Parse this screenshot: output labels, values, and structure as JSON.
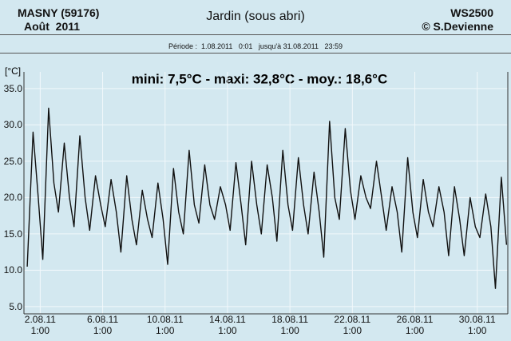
{
  "header": {
    "station": "MASNY (59176)",
    "month": "Août  2011",
    "location": "Jardin (sous abri)",
    "device": "WS2500",
    "author": "© S.Devienne",
    "period": "Période :  1.08.2011   0:01   jusqu'à 31.08.2011   23:59"
  },
  "chart_data": {
    "type": "line",
    "title": "mini: 7,5°C - maxi: 32,8°C - moy.: 18,6°C",
    "y_label": "[°C]",
    "color": "#111111",
    "grid": true,
    "x": [
      "2011-08-01 05:00",
      "2011-08-01 14:00",
      "2011-08-01 22:00",
      "2011-08-02 05:00",
      "2011-08-02 14:00",
      "2011-08-02 22:00",
      "2011-08-03 05:00",
      "2011-08-03 14:00",
      "2011-08-03 22:00",
      "2011-08-04 05:00",
      "2011-08-04 14:00",
      "2011-08-04 22:00",
      "2011-08-05 05:00",
      "2011-08-05 14:00",
      "2011-08-05 22:00",
      "2011-08-06 05:00",
      "2011-08-06 14:00",
      "2011-08-06 22:00",
      "2011-08-07 05:00",
      "2011-08-07 14:00",
      "2011-08-07 22:00",
      "2011-08-08 05:00",
      "2011-08-08 14:00",
      "2011-08-08 22:00",
      "2011-08-09 05:00",
      "2011-08-09 14:00",
      "2011-08-09 22:00",
      "2011-08-10 05:00",
      "2011-08-10 14:00",
      "2011-08-10 22:00",
      "2011-08-11 05:00",
      "2011-08-11 14:00",
      "2011-08-11 22:00",
      "2011-08-12 05:00",
      "2011-08-12 14:00",
      "2011-08-12 22:00",
      "2011-08-13 05:00",
      "2011-08-13 14:00",
      "2011-08-13 22:00",
      "2011-08-14 05:00",
      "2011-08-14 14:00",
      "2011-08-14 22:00",
      "2011-08-15 05:00",
      "2011-08-15 14:00",
      "2011-08-15 22:00",
      "2011-08-16 05:00",
      "2011-08-16 14:00",
      "2011-08-16 22:00",
      "2011-08-17 05:00",
      "2011-08-17 14:00",
      "2011-08-17 22:00",
      "2011-08-18 05:00",
      "2011-08-18 14:00",
      "2011-08-18 22:00",
      "2011-08-19 05:00",
      "2011-08-19 14:00",
      "2011-08-19 22:00",
      "2011-08-20 05:00",
      "2011-08-20 14:00",
      "2011-08-20 22:00",
      "2011-08-21 05:00",
      "2011-08-21 14:00",
      "2011-08-21 22:00",
      "2011-08-22 05:00",
      "2011-08-22 14:00",
      "2011-08-22 22:00",
      "2011-08-23 05:00",
      "2011-08-23 14:00",
      "2011-08-23 22:00",
      "2011-08-24 05:00",
      "2011-08-24 14:00",
      "2011-08-24 22:00",
      "2011-08-25 05:00",
      "2011-08-25 14:00",
      "2011-08-25 22:00",
      "2011-08-26 05:00",
      "2011-08-26 14:00",
      "2011-08-26 22:00",
      "2011-08-27 05:00",
      "2011-08-27 14:00",
      "2011-08-27 22:00",
      "2011-08-28 05:00",
      "2011-08-28 14:00",
      "2011-08-28 22:00",
      "2011-08-29 05:00",
      "2011-08-29 14:00",
      "2011-08-29 22:00",
      "2011-08-30 05:00",
      "2011-08-30 14:00",
      "2011-08-30 22:00",
      "2011-08-31 05:00",
      "2011-08-31 14:00",
      "2011-08-31 22:00"
    ],
    "values": [
      10.5,
      29,
      20,
      11.5,
      32.3,
      22,
      18,
      27.5,
      20,
      16,
      28.5,
      20,
      15.5,
      23,
      19,
      16,
      22.5,
      18,
      12.5,
      23,
      17,
      13.5,
      21,
      17,
      14.5,
      22,
      17,
      10.8,
      24,
      18,
      15,
      26.5,
      19,
      16.5,
      24.5,
      19,
      17,
      21.5,
      19,
      15.5,
      24.8,
      19,
      13.5,
      25,
      19,
      15,
      24.5,
      20,
      14,
      26.5,
      19,
      15.5,
      25.5,
      19,
      15,
      23.5,
      18,
      11.8,
      30.5,
      20,
      17,
      29.5,
      21,
      17,
      23,
      20,
      18.5,
      25,
      20,
      15.5,
      21.5,
      18,
      12.5,
      25.5,
      18,
      14.5,
      22.5,
      18,
      16,
      21.5,
      18,
      12,
      21.5,
      17,
      12,
      20,
      16,
      14.5,
      20.5,
      16,
      7.5,
      22.8,
      13.5
    ],
    "xlim": [
      "2011-08-01 00:01",
      "2011-08-31 23:59"
    ],
    "xticks": [
      {
        "value": "2011-08-02 01:00",
        "label": "2.08.11\n1:00"
      },
      {
        "value": "2011-08-06 01:00",
        "label": "6.08.11\n1:00"
      },
      {
        "value": "2011-08-10 01:00",
        "label": "10.08.11\n1:00"
      },
      {
        "value": "2011-08-14 01:00",
        "label": "14.08.11\n1:00"
      },
      {
        "value": "2011-08-18 01:00",
        "label": "18.08.11\n1:00"
      },
      {
        "value": "2011-08-22 01:00",
        "label": "22.08.11\n1:00"
      },
      {
        "value": "2011-08-26 01:00",
        "label": "26.08.11\n1:00"
      },
      {
        "value": "2011-08-30 01:00",
        "label": "30.08.11\n1:00"
      }
    ],
    "ylim": [
      4,
      37.3
    ],
    "yticks": [
      {
        "value": 5,
        "label": "5.0"
      },
      {
        "value": 10,
        "label": "10.0"
      },
      {
        "value": 15,
        "label": "15.0"
      },
      {
        "value": 20,
        "label": "20.0"
      },
      {
        "value": 25,
        "label": "25.0"
      },
      {
        "value": 30,
        "label": "30.0"
      },
      {
        "value": 35,
        "label": "35.0"
      }
    ]
  }
}
